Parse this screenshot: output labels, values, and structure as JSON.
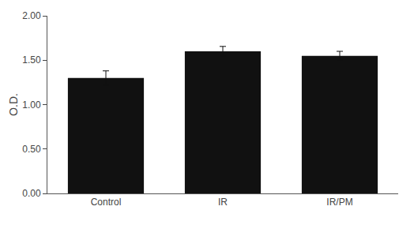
{
  "chart_data": {
    "type": "bar",
    "categories": [
      "Control",
      "IR",
      "IR/PM"
    ],
    "values": [
      1.3,
      1.6,
      1.55
    ],
    "errors": [
      0.08,
      0.055,
      0.05
    ],
    "color": "#111111",
    "ylabel": "O.D.",
    "ylim": [
      0,
      2.0
    ],
    "yticks": [
      {
        "value": 0.0,
        "label": "0.00"
      },
      {
        "value": 0.5,
        "label": "0.50"
      },
      {
        "value": 1.0,
        "label": "1.00"
      },
      {
        "value": 1.5,
        "label": "1.50"
      },
      {
        "value": 2.0,
        "label": "2.00"
      }
    ],
    "grid": false
  }
}
